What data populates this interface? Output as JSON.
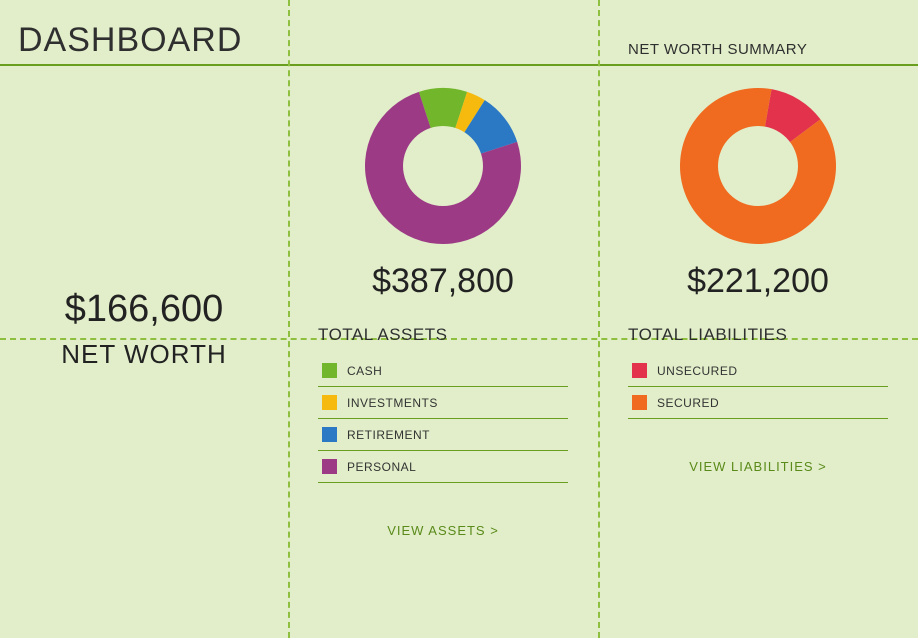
{
  "header": {
    "title": "DASHBOARD",
    "subtitle": "NET WORTH SUMMARY"
  },
  "colors": {
    "background": "#e1eec9",
    "accent_line": "#6a9e1f",
    "dashed_line": "#8fbf3f",
    "text": "#2f2f2f",
    "link": "#5a8a1a"
  },
  "net_worth": {
    "value": "$166,600",
    "label": "NET WORTH"
  },
  "assets": {
    "title": "TOTAL ASSETS",
    "total": "$387,800",
    "view_link": "VIEW ASSETS >",
    "donut": {
      "type": "donut",
      "outer_radius": 78,
      "inner_radius": 40,
      "background": "#e1eec9",
      "slices": [
        {
          "label": "CASH",
          "value": 10,
          "color": "#72b62c"
        },
        {
          "label": "INVESTMENTS",
          "value": 4,
          "color": "#f6b90e"
        },
        {
          "label": "RETIREMENT",
          "value": 11,
          "color": "#2b78c4"
        },
        {
          "label": "PERSONAL",
          "value": 75,
          "color": "#9c3a86"
        }
      ]
    }
  },
  "liabilities": {
    "title": "TOTAL LIABILITIES",
    "total": "$221,200",
    "view_link": "VIEW LIABILITIES >",
    "donut": {
      "type": "donut",
      "outer_radius": 78,
      "inner_radius": 40,
      "background": "#e1eec9",
      "slices": [
        {
          "label": "UNSECURED",
          "value": 12,
          "color": "#e3324b"
        },
        {
          "label": "SECURED",
          "value": 88,
          "color": "#f06a1f"
        }
      ]
    }
  }
}
